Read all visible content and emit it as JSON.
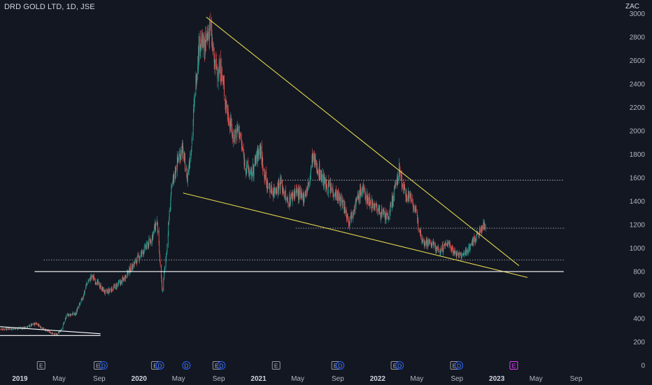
{
  "header": {
    "title": "DRD GOLD LTD, 1D, JSE",
    "currency": "ZAC"
  },
  "colors": {
    "background": "#131722",
    "up": "#26a69a",
    "down": "#ef5350",
    "trendline": "#e3d84c",
    "support": "#ffffff",
    "axis_text": "#b2b5be",
    "dividend_badge": "#2962ff",
    "upcoming_earnings_badge": "#e040fb"
  },
  "chart_data": {
    "type": "candlestick",
    "title": "DRD GOLD LTD, 1D, JSE",
    "x_ticks": [
      {
        "label": "2019",
        "date": "2019-01-01",
        "bold": true
      },
      {
        "label": "May",
        "date": "2019-05-01",
        "bold": false
      },
      {
        "label": "Sep",
        "date": "2019-09-01",
        "bold": false
      },
      {
        "label": "2020",
        "date": "2020-01-01",
        "bold": true
      },
      {
        "label": "May",
        "date": "2020-05-01",
        "bold": false
      },
      {
        "label": "Sep",
        "date": "2020-09-01",
        "bold": false
      },
      {
        "label": "2021",
        "date": "2021-01-01",
        "bold": true
      },
      {
        "label": "May",
        "date": "2021-05-01",
        "bold": false
      },
      {
        "label": "Sep",
        "date": "2021-09-01",
        "bold": false
      },
      {
        "label": "2022",
        "date": "2022-01-01",
        "bold": true
      },
      {
        "label": "May",
        "date": "2022-05-01",
        "bold": false
      },
      {
        "label": "Sep",
        "date": "2022-09-01",
        "bold": false
      },
      {
        "label": "2023",
        "date": "2023-01-01",
        "bold": true
      },
      {
        "label": "May",
        "date": "2023-05-01",
        "bold": false
      },
      {
        "label": "Sep",
        "date": "2023-09-01",
        "bold": false
      }
    ],
    "y_ticks": [
      0,
      200,
      400,
      600,
      800,
      1000,
      1200,
      1400,
      1600,
      1800,
      2000,
      2200,
      2400,
      2600,
      2800,
      3000
    ],
    "x_range": [
      "2018-11-01",
      "2023-12-31"
    ],
    "ylim": [
      0,
      3080
    ],
    "price_path": [
      [
        "2018-11-01",
        310
      ],
      [
        "2019-01-15",
        320
      ],
      [
        "2019-02-20",
        360
      ],
      [
        "2019-03-15",
        310
      ],
      [
        "2019-04-10",
        275
      ],
      [
        "2019-04-25",
        260
      ],
      [
        "2019-05-10",
        320
      ],
      [
        "2019-05-25",
        430
      ],
      [
        "2019-06-20",
        440
      ],
      [
        "2019-07-10",
        560
      ],
      [
        "2019-07-25",
        700
      ],
      [
        "2019-08-10",
        760
      ],
      [
        "2019-08-30",
        690
      ],
      [
        "2019-09-20",
        620
      ],
      [
        "2019-10-15",
        660
      ],
      [
        "2019-11-10",
        720
      ],
      [
        "2019-12-10",
        840
      ],
      [
        "2020-01-10",
        960
      ],
      [
        "2020-02-05",
        1060
      ],
      [
        "2020-02-25",
        1230
      ],
      [
        "2020-03-12",
        620
      ],
      [
        "2020-03-25",
        960
      ],
      [
        "2020-04-08",
        1470
      ],
      [
        "2020-04-25",
        1720
      ],
      [
        "2020-05-12",
        1850
      ],
      [
        "2020-05-28",
        1600
      ],
      [
        "2020-06-10",
        1900
      ],
      [
        "2020-06-25",
        2500
      ],
      [
        "2020-07-05",
        2780
      ],
      [
        "2020-07-20",
        2700
      ],
      [
        "2020-08-05",
        2900
      ],
      [
        "2020-08-20",
        2550
      ],
      [
        "2020-09-10",
        2500
      ],
      [
        "2020-09-25",
        2200
      ],
      [
        "2020-10-15",
        1950
      ],
      [
        "2020-11-01",
        2020
      ],
      [
        "2020-11-20",
        1720
      ],
      [
        "2020-12-10",
        1620
      ],
      [
        "2021-01-05",
        1860
      ],
      [
        "2021-01-25",
        1550
      ],
      [
        "2021-02-15",
        1480
      ],
      [
        "2021-03-10",
        1560
      ],
      [
        "2021-03-31",
        1390
      ],
      [
        "2021-04-25",
        1490
      ],
      [
        "2021-05-15",
        1420
      ],
      [
        "2021-06-05",
        1540
      ],
      [
        "2021-06-15",
        1770
      ],
      [
        "2021-07-05",
        1660
      ],
      [
        "2021-07-25",
        1540
      ],
      [
        "2021-08-25",
        1470
      ],
      [
        "2021-09-20",
        1360
      ],
      [
        "2021-10-05",
        1230
      ],
      [
        "2021-10-25",
        1380
      ],
      [
        "2021-11-15",
        1510
      ],
      [
        "2021-11-30",
        1420
      ],
      [
        "2021-12-20",
        1370
      ],
      [
        "2022-01-15",
        1290
      ],
      [
        "2022-02-01",
        1250
      ],
      [
        "2022-02-25",
        1520
      ],
      [
        "2022-03-08",
        1670
      ],
      [
        "2022-03-25",
        1470
      ],
      [
        "2022-04-15",
        1430
      ],
      [
        "2022-05-01",
        1260
      ],
      [
        "2022-05-20",
        1060
      ],
      [
        "2022-06-15",
        1040
      ],
      [
        "2022-07-10",
        970
      ],
      [
        "2022-08-05",
        1050
      ],
      [
        "2022-08-25",
        960
      ],
      [
        "2022-09-15",
        930
      ],
      [
        "2022-10-01",
        970
      ],
      [
        "2022-10-20",
        1060
      ],
      [
        "2022-11-10",
        1140
      ],
      [
        "2022-11-28",
        1210
      ]
    ],
    "lines": [
      {
        "name": "descending-trendline",
        "color": "trendline",
        "from": [
          "2020-07-25",
          2970
        ],
        "to": [
          "2023-03-10",
          850
        ]
      },
      {
        "name": "lower-wedge-line",
        "color": "trendline",
        "from": [
          "2020-05-15",
          1470
        ],
        "to": [
          "2023-04-05",
          750
        ]
      },
      {
        "name": "support-line",
        "color": "support",
        "from": [
          "2019-02-15",
          800
        ],
        "to": [
          "2023-07-25",
          800
        ]
      },
      {
        "name": "small-upper-line",
        "color": "support",
        "from": [
          "2018-11-01",
          330
        ],
        "to": [
          "2019-09-05",
          270
        ]
      },
      {
        "name": "small-lower-line",
        "color": "support",
        "from": [
          "2018-11-01",
          255
        ],
        "to": [
          "2019-09-05",
          255
        ]
      }
    ],
    "dotted_lines": [
      {
        "name": "resistance-1580",
        "value": 1580,
        "from": "2021-03-01",
        "to": "2023-07-25"
      },
      {
        "name": "resistance-1170",
        "value": 1170,
        "from": "2021-04-25",
        "to": "2023-07-30"
      },
      {
        "name": "support-900",
        "value": 900,
        "from": "2019-03-15",
        "to": "2023-07-25"
      }
    ],
    "event_markers": [
      {
        "label": "E",
        "type": "earnings",
        "date": "2019-03-07"
      },
      {
        "label": "E",
        "type": "earnings",
        "date": "2019-08-28"
      },
      {
        "label": "D",
        "type": "dividend",
        "date": "2019-09-14"
      },
      {
        "label": "E",
        "type": "earnings",
        "date": "2020-02-20"
      },
      {
        "label": "D",
        "type": "dividend",
        "date": "2020-03-05"
      },
      {
        "label": "D",
        "type": "dividend",
        "date": "2020-05-25"
      },
      {
        "label": "E",
        "type": "earnings",
        "date": "2020-08-26"
      },
      {
        "label": "D",
        "type": "dividend",
        "date": "2020-09-09"
      },
      {
        "label": "E",
        "type": "earnings",
        "date": "2021-02-24"
      },
      {
        "label": "E",
        "type": "earnings",
        "date": "2021-08-25"
      },
      {
        "label": "D",
        "type": "dividend",
        "date": "2021-09-08"
      },
      {
        "label": "E",
        "type": "earnings",
        "date": "2022-02-23"
      },
      {
        "label": "D",
        "type": "dividend",
        "date": "2022-03-09"
      },
      {
        "label": "E",
        "type": "earnings",
        "date": "2022-08-24"
      },
      {
        "label": "D",
        "type": "dividend",
        "date": "2022-09-07"
      },
      {
        "label": "E",
        "type": "earnings-upcoming",
        "date": "2023-02-22"
      }
    ]
  }
}
